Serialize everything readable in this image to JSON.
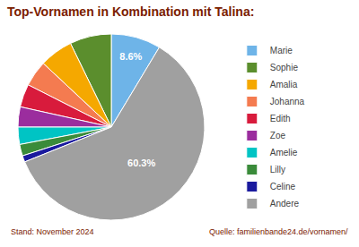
{
  "chart_data": {
    "type": "pie",
    "title": "Top-Vornamen in Kombination mit Talina:",
    "categories": [
      "Marie",
      "Sophie",
      "Amalia",
      "Johanna",
      "Edith",
      "Zoe",
      "Amelie",
      "Lilly",
      "Celine",
      "Andere"
    ],
    "values": [
      8.6,
      7.2,
      5.8,
      4.5,
      4.0,
      3.5,
      3.0,
      2.0,
      1.1,
      60.3
    ],
    "value_labels": [
      "8.6%",
      null,
      null,
      null,
      null,
      null,
      null,
      null,
      null,
      "60.3%"
    ],
    "data_labels": true,
    "colors": [
      "#6EB4E8",
      "#5B8E2D",
      "#F5A800",
      "#F47B50",
      "#D81B3C",
      "#9B2D9E",
      "#00C4C4",
      "#3A8B3A",
      "#1A1A9E",
      "#A0A0A0"
    ],
    "legend": "right",
    "annotations": [
      "Stand: November 2024",
      "Quelle: familienbande24.de/vornamen/"
    ]
  }
}
